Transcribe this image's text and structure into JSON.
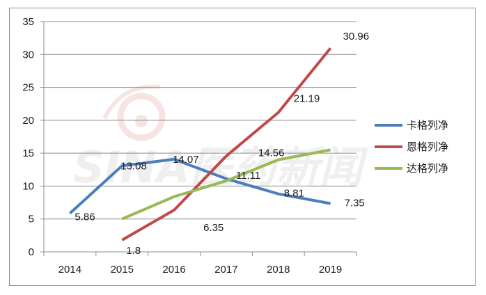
{
  "chart_data": {
    "type": "line",
    "categories": [
      "2014",
      "2015",
      "2016",
      "2017",
      "2018",
      "2019"
    ],
    "series": [
      {
        "name": "卡格列净",
        "color": "#4a7ebb",
        "values": [
          5.86,
          13.08,
          14.07,
          11.11,
          8.81,
          7.35
        ],
        "labels": [
          "5.86",
          "13.08",
          "14.07",
          "11.11",
          "8.81",
          "7.35"
        ]
      },
      {
        "name": "恩格列净",
        "color": "#be4b48",
        "values": [
          null,
          1.8,
          6.35,
          14.56,
          21.19,
          30.96
        ],
        "labels": [
          "",
          "1.8",
          "6.35",
          "14.56",
          "21.19",
          "30.96"
        ]
      },
      {
        "name": "达格列净",
        "color": "#98b954",
        "values": [
          null,
          5.0,
          8.4,
          10.8,
          14.0,
          15.5
        ],
        "labels": []
      }
    ],
    "y_ticks": [
      "0",
      "5",
      "10",
      "15",
      "20",
      "25",
      "30",
      "35"
    ],
    "ylim": [
      0,
      35
    ],
    "grid": true,
    "legend_position": "right",
    "title": "",
    "xlabel": "",
    "ylabel": "",
    "watermark": "SINA医药新闻"
  }
}
